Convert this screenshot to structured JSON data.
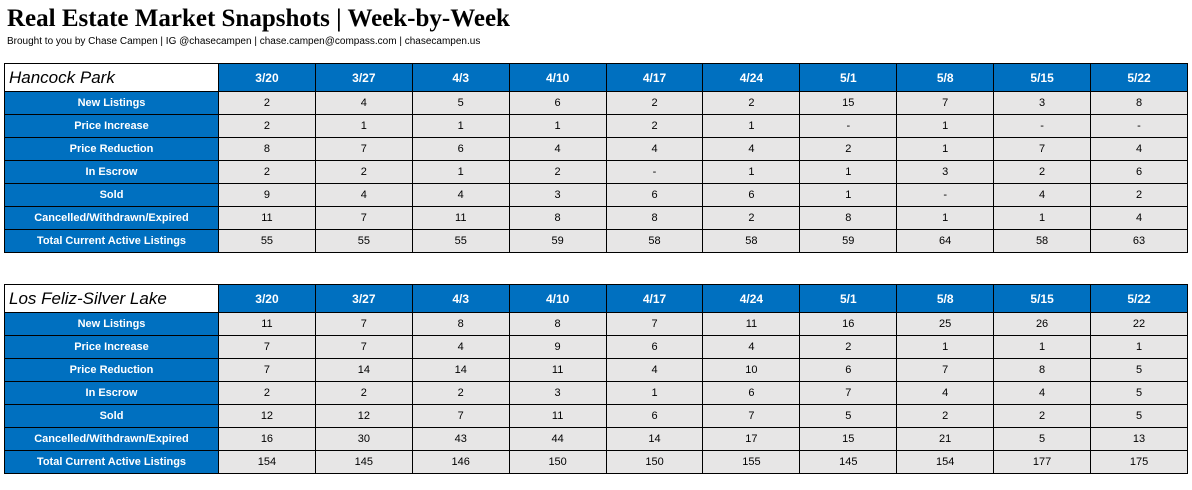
{
  "title": "Real Estate Market Snapshots | Week-by-Week",
  "subtitle": "Brought to you by Chase Campen | IG @chasecampen | chase.campen@compass.com | chasecampen.us",
  "colors": {
    "header_blue": "#0070c0",
    "cell_gray": "#e7e6e6",
    "header_text": "#ffffff"
  },
  "dates": [
    "3/20",
    "3/27",
    "4/3",
    "4/10",
    "4/17",
    "4/24",
    "5/1",
    "5/8",
    "5/15",
    "5/22"
  ],
  "tables": [
    {
      "name": "Hancock Park",
      "rows": [
        {
          "label": "New Listings",
          "values": [
            "2",
            "4",
            "5",
            "6",
            "2",
            "2",
            "15",
            "7",
            "3",
            "8"
          ]
        },
        {
          "label": "Price Increase",
          "values": [
            "2",
            "1",
            "1",
            "1",
            "2",
            "1",
            "-",
            "1",
            "-",
            "-"
          ]
        },
        {
          "label": "Price Reduction",
          "values": [
            "8",
            "7",
            "6",
            "4",
            "4",
            "4",
            "2",
            "1",
            "7",
            "4"
          ]
        },
        {
          "label": "In Escrow",
          "values": [
            "2",
            "2",
            "1",
            "2",
            "-",
            "1",
            "1",
            "3",
            "2",
            "6"
          ]
        },
        {
          "label": "Sold",
          "values": [
            "9",
            "4",
            "4",
            "3",
            "6",
            "6",
            "1",
            "-",
            "4",
            "2"
          ]
        },
        {
          "label": "Cancelled/Withdrawn/Expired",
          "values": [
            "11",
            "7",
            "11",
            "8",
            "8",
            "2",
            "8",
            "1",
            "1",
            "4"
          ]
        },
        {
          "label": "Total Current Active Listings",
          "values": [
            "55",
            "55",
            "55",
            "59",
            "58",
            "58",
            "59",
            "64",
            "58",
            "63"
          ]
        }
      ]
    },
    {
      "name": "Los Feliz-Silver Lake",
      "rows": [
        {
          "label": "New Listings",
          "values": [
            "11",
            "7",
            "8",
            "8",
            "7",
            "11",
            "16",
            "25",
            "26",
            "22"
          ]
        },
        {
          "label": "Price Increase",
          "values": [
            "7",
            "7",
            "4",
            "9",
            "6",
            "4",
            "2",
            "1",
            "1",
            "1"
          ]
        },
        {
          "label": "Price Reduction",
          "values": [
            "7",
            "14",
            "14",
            "11",
            "4",
            "10",
            "6",
            "7",
            "8",
            "5"
          ]
        },
        {
          "label": "In Escrow",
          "values": [
            "2",
            "2",
            "2",
            "3",
            "1",
            "6",
            "7",
            "4",
            "4",
            "5"
          ]
        },
        {
          "label": "Sold",
          "values": [
            "12",
            "12",
            "7",
            "11",
            "6",
            "7",
            "5",
            "2",
            "2",
            "5"
          ]
        },
        {
          "label": "Cancelled/Withdrawn/Expired",
          "values": [
            "16",
            "30",
            "43",
            "44",
            "14",
            "17",
            "15",
            "21",
            "5",
            "13"
          ]
        },
        {
          "label": "Total Current Active Listings",
          "values": [
            "154",
            "145",
            "146",
            "150",
            "150",
            "155",
            "145",
            "154",
            "177",
            "175"
          ]
        }
      ]
    }
  ]
}
